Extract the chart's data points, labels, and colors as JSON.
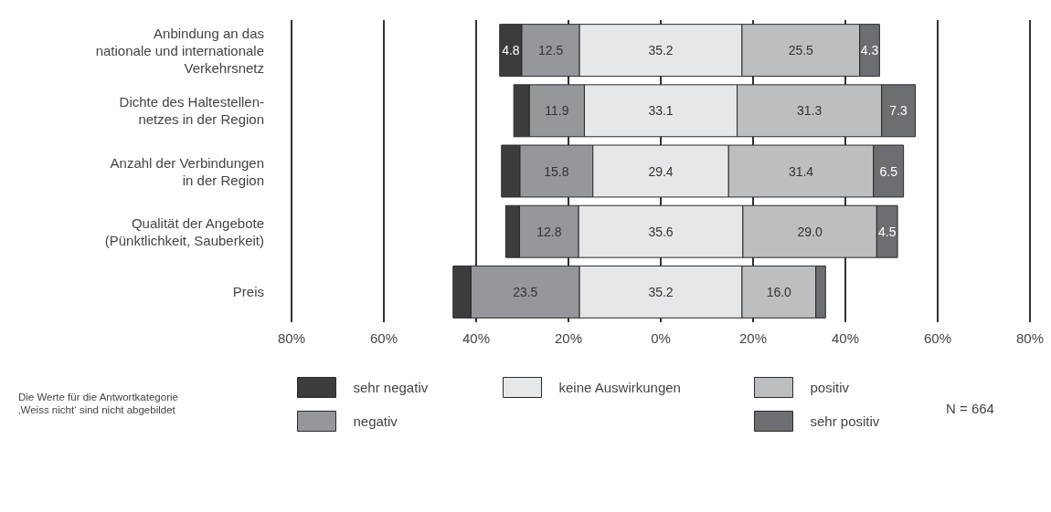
{
  "chart_data": {
    "type": "bar",
    "orientation": "horizontal",
    "categories": [
      "Anbindung an das\nnationale und internationale\nVerkehrsnetz",
      "Dichte des Haltestellen-\nnetzes in der Region",
      "Anzahl der Verbindungen\nin der Region",
      "Qualität der Angebote\n(Pünktlichkeit, Sauberkeit)",
      "Preis"
    ],
    "series": [
      {
        "name": "sehr negativ",
        "color": "#3c3c3c",
        "values": [
          4.8,
          3.4,
          4.0,
          3.0,
          3.9
        ],
        "base": [
          -34.9,
          -31.85,
          -34.5,
          -33.6,
          -45.0
        ],
        "value_labels": [
          "4.8",
          null,
          null,
          null,
          null
        ]
      },
      {
        "name": "negativ",
        "color": "#96979a",
        "values": [
          12.5,
          11.9,
          15.8,
          12.8,
          23.5
        ],
        "base": [
          -30.1,
          -28.45,
          -30.5,
          -30.6,
          -41.1
        ],
        "value_labels": [
          "12.5",
          "11.9",
          "15.8",
          "12.8",
          "23.5"
        ]
      },
      {
        "name": "keine Auswirkungen",
        "color": "#e6e7e8",
        "values": [
          35.2,
          33.1,
          29.4,
          35.6,
          35.2
        ],
        "base": [
          -17.6,
          -16.55,
          -14.7,
          -17.8,
          -17.6
        ],
        "value_labels": [
          "35.2",
          "33.1",
          "29.4",
          "35.6",
          "35.2"
        ]
      },
      {
        "name": "positiv",
        "color": "#bdbec0",
        "values": [
          25.5,
          31.3,
          31.4,
          29.0,
          16.0
        ],
        "base": [
          17.6,
          16.55,
          14.7,
          17.8,
          17.6
        ],
        "value_labels": [
          "25.5",
          "31.3",
          "31.4",
          "29.0",
          "16.0"
        ]
      },
      {
        "name": "sehr positiv",
        "color": "#6d6e71",
        "values": [
          4.3,
          7.3,
          6.5,
          4.5,
          2.1
        ],
        "base": [
          43.1,
          47.85,
          46.1,
          46.8,
          33.6
        ],
        "value_labels": [
          "4.3",
          "7.3",
          "6.5",
          "4.5",
          null
        ]
      }
    ],
    "xlim": [
      -80,
      80
    ],
    "xticks": [
      {
        "value": -80,
        "label": "80%"
      },
      {
        "value": -60,
        "label": "60%"
      },
      {
        "value": -40,
        "label": "40%"
      },
      {
        "value": -20,
        "label": "20%"
      },
      {
        "value": 0,
        "label": "0%"
      },
      {
        "value": 20,
        "label": "20%"
      },
      {
        "value": 40,
        "label": "40%"
      },
      {
        "value": 60,
        "label": "60%"
      },
      {
        "value": 80,
        "label": "80%"
      }
    ],
    "grid": "x",
    "legend": "bottom",
    "annotations": [
      "Die Werte für die Antwortkategorie\n‚Weiss nicht‘ sind nicht abgebildet",
      "N = 664"
    ]
  }
}
